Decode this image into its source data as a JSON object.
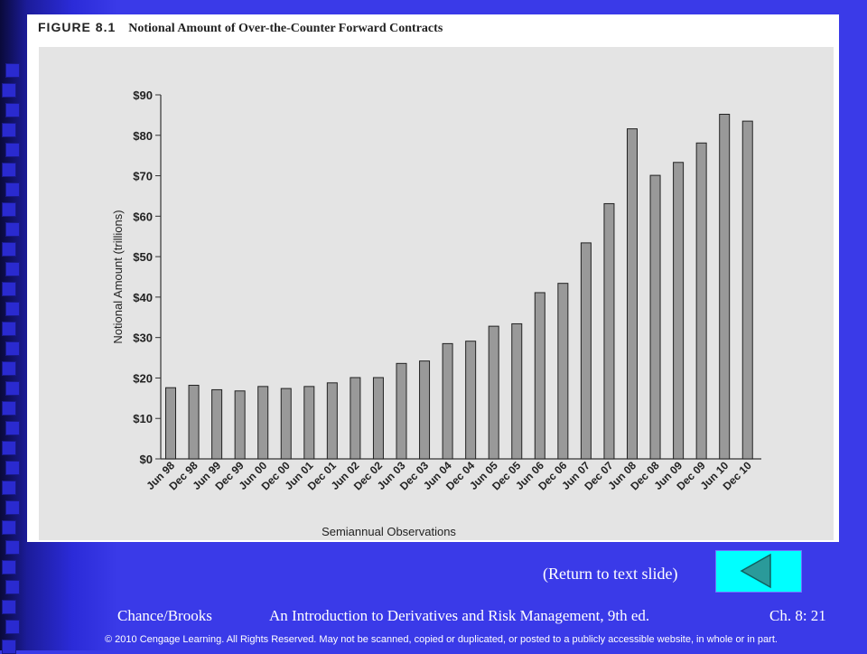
{
  "figure": {
    "number": "FIGURE 8.1",
    "title": "Notional Amount of Over-the-Counter Forward Contracts"
  },
  "chart_data": {
    "type": "bar",
    "xlabel": "Semiannual Observations",
    "ylabel": "Notional Amount (trillions)",
    "ylim": [
      0,
      90
    ],
    "yticks": [
      "$0",
      "$10",
      "$20",
      "$30",
      "$40",
      "$50",
      "$60",
      "$70",
      "$80",
      "$90"
    ],
    "categories": [
      "Jun 98",
      "Dec 98",
      "Jun 99",
      "Dec 99",
      "Jun 00",
      "Dec 00",
      "Jun 01",
      "Dec 01",
      "Jun 02",
      "Dec 02",
      "Jun 03",
      "Dec 03",
      "Jun 04",
      "Dec 04",
      "Jun 05",
      "Dec 05",
      "Jun 06",
      "Dec 06",
      "Jun 07",
      "Dec 07",
      "Jun 08",
      "Dec 08",
      "Jun 09",
      "Dec 09",
      "Jun 10",
      "Dec 10"
    ],
    "values": [
      17.6,
      18.2,
      17.1,
      16.8,
      17.9,
      17.4,
      17.9,
      18.8,
      20.1,
      20.1,
      23.6,
      24.2,
      28.5,
      29.1,
      32.8,
      33.4,
      41.1,
      43.4,
      53.4,
      63.1,
      81.6,
      70.1,
      73.3,
      78.1,
      85.2,
      83.5
    ],
    "bar_color": "#999999",
    "grid": false
  },
  "nav": {
    "return_label": "(Return to text slide)",
    "return_icon": "left-triangle-icon"
  },
  "footer": {
    "authors": "Chance/Brooks",
    "book": "An Introduction to Derivatives and Risk Management, 9th ed.",
    "chapter": "Ch. 8: 21",
    "copyright": "© 2010 Cengage Learning. All Rights Reserved.  May not be scanned, copied or duplicated, or posted to a publicly accessible website, in whole or in part."
  }
}
